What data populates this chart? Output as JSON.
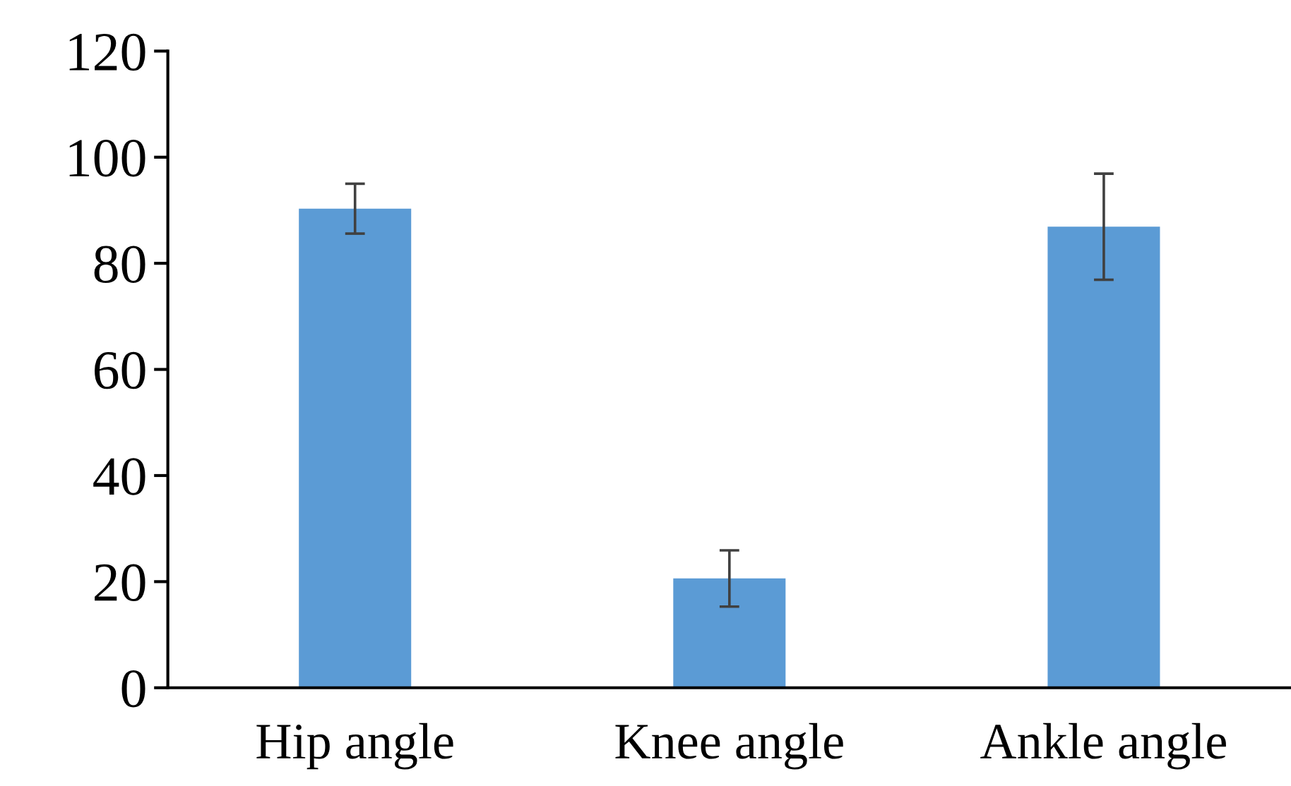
{
  "chart_data": {
    "type": "bar",
    "categories": [
      "Hip angle",
      "Knee angle",
      "Ankle angle"
    ],
    "values": [
      90.3,
      20.6,
      86.9
    ],
    "errors": [
      4.7,
      5.3,
      10
    ],
    "color": "#5b9bd5",
    "ylim": [
      0,
      120
    ],
    "yticks": [
      0,
      20,
      40,
      60,
      80,
      100,
      120
    ],
    "grid": false
  }
}
